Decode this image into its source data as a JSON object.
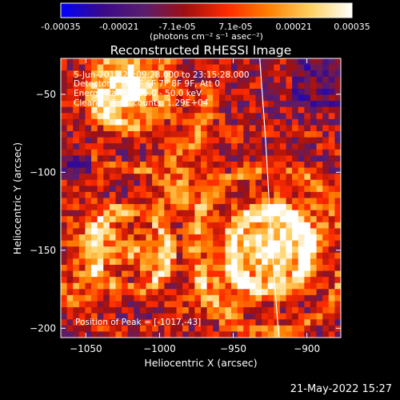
{
  "chart_data": {
    "type": "heatmap",
    "title": "Reconstructed RHESSI Image",
    "xlabel": "Heliocentric X (arcsec)",
    "ylabel": "Heliocentric Y (arcsec)",
    "xlim": [
      -1067,
      -877
    ],
    "ylim": [
      -206,
      -27
    ],
    "x_ticks": [
      -1050,
      -1000,
      -950,
      -900
    ],
    "y_ticks": [
      -200,
      -150,
      -100,
      -50
    ],
    "colorbar": {
      "range": [
        -0.00035,
        0.00035
      ],
      "tick_labels": [
        "-0.00035",
        "-0.00021",
        "-7.1e-05",
        "7.1e-05",
        "0.00021",
        "0.00035"
      ],
      "unit_label": "(photons cm⁻² s⁻¹ asec⁻²)",
      "colormap": [
        "#0000ff",
        "#3a0a8a",
        "#5a1d6e",
        "#a01010",
        "#ff2a00",
        "#ff8000",
        "#ffd060",
        "#ffffff"
      ]
    },
    "annotations": [
      "5-Jun-2015 23:09:28.000 to 23:15:28.000",
      "Detectors: 3F 5F 6F 7F 8F 9F, Att 0",
      "Energy Range: 25.0 - 50.0 keV",
      "Clean     Total counts: 1.29E+04"
    ],
    "peak_label": "Position of Peak = [-1017,-43]",
    "peak_position": [
      -1017,
      -43
    ],
    "limb_curve": [
      [
        -932,
        -27
      ],
      [
        -928,
        -80
      ],
      [
        -925,
        -130
      ],
      [
        -922,
        -170
      ],
      [
        -919,
        -206
      ]
    ]
  },
  "footer": {
    "datestamp": "21-May-2022 15:27"
  }
}
